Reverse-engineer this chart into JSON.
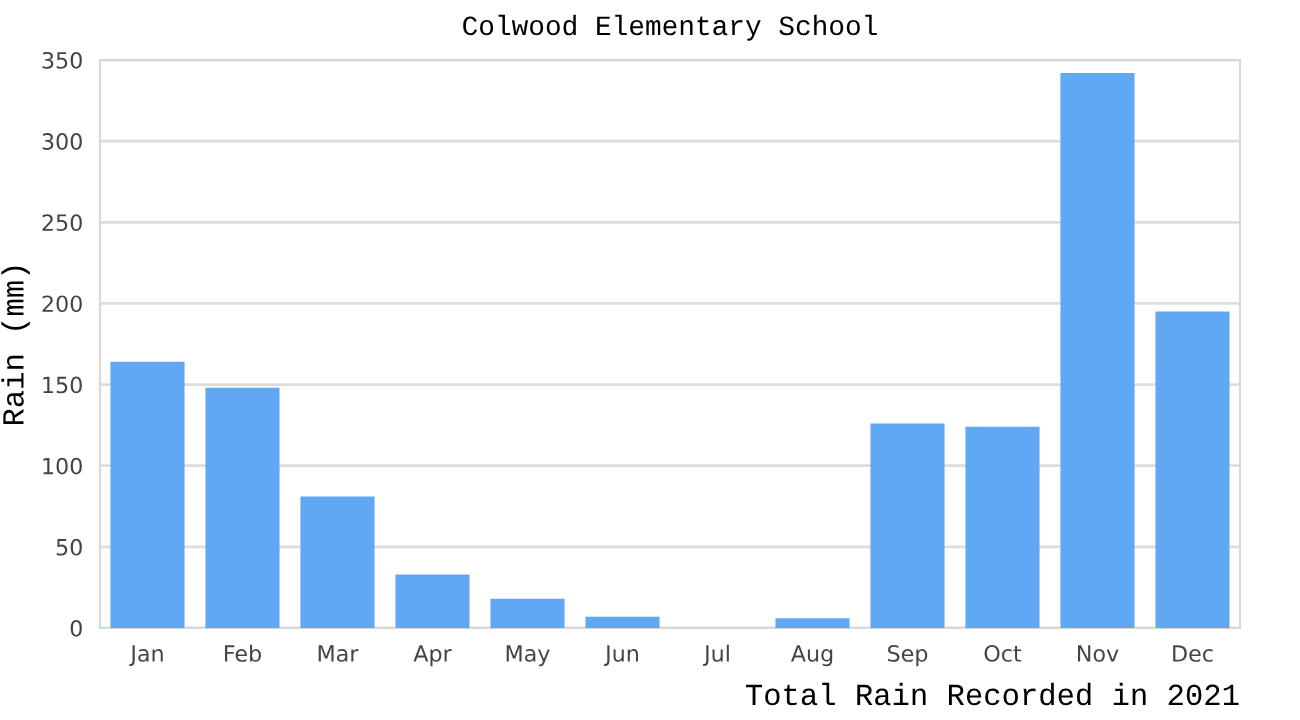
{
  "chart_data": {
    "type": "bar",
    "title": "Colwood Elementary School",
    "xlabel": "Total Rain Recorded in 2021",
    "ylabel": "Rain (mm)",
    "categories": [
      "Jan",
      "Feb",
      "Mar",
      "Apr",
      "May",
      "Jun",
      "Jul",
      "Aug",
      "Sep",
      "Oct",
      "Nov",
      "Dec"
    ],
    "values": [
      164,
      148,
      81,
      33,
      18,
      7,
      0,
      6,
      126,
      124,
      342,
      195
    ],
    "color": "#60a8f4",
    "ylim": [
      0,
      350
    ],
    "yticks": [
      0,
      50,
      100,
      150,
      200,
      250,
      300,
      350
    ],
    "grid": "y"
  }
}
